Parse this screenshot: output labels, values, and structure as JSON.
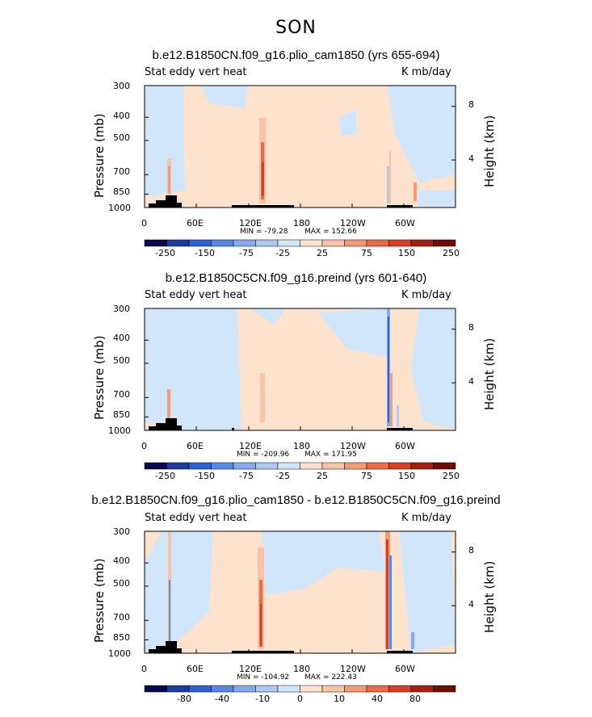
{
  "figure_title": "SON",
  "chart_data": [
    {
      "type": "heatmap",
      "title": "b.e12.B1850CN.f09_g16.plio_cam1850 (yrs 655-694)",
      "left_label": "Stat eddy vert heat",
      "right_label": "K mb/day",
      "ylabel": "Pressure (mb)",
      "y2label": "Height (km)",
      "x_ticks": [
        "0",
        "60E",
        "120E",
        "180",
        "120W",
        "60W"
      ],
      "y_ticks": [
        "300",
        "400",
        "500",
        "700",
        "850",
        "1000"
      ],
      "y2_ticks": [
        "8",
        "4"
      ],
      "min_label": "MIN = -79.28",
      "max_label": "MAX = 152.66",
      "colorbar_labels": [
        "-250",
        "-150",
        "-75",
        "-25",
        "25",
        "75",
        "150",
        "250"
      ]
    },
    {
      "type": "heatmap",
      "title": "b.e12.B1850C5CN.f09_g16.preind (yrs 601-640)",
      "left_label": "Stat eddy vert heat",
      "right_label": "K mb/day",
      "ylabel": "Pressure (mb)",
      "y2label": "Height (km)",
      "x_ticks": [
        "0",
        "60E",
        "120E",
        "180",
        "120W",
        "60W"
      ],
      "y_ticks": [
        "300",
        "400",
        "500",
        "700",
        "850",
        "1000"
      ],
      "y2_ticks": [
        "8",
        "4"
      ],
      "min_label": "MIN = -209.96",
      "max_label": "MAX = 171.95",
      "colorbar_labels": [
        "-250",
        "-150",
        "-75",
        "-25",
        "25",
        "75",
        "150",
        "250"
      ]
    },
    {
      "type": "heatmap",
      "title": "b.e12.B1850CN.f09_g16.plio_cam1850 - b.e12.B1850C5CN.f09_g16.preind",
      "left_label": "Stat eddy vert heat",
      "right_label": "K mb/day",
      "ylabel": "Pressure (mb)",
      "y2label": "Height (km)",
      "x_ticks": [
        "0",
        "60E",
        "120E",
        "180",
        "120W",
        "60W"
      ],
      "y_ticks": [
        "300",
        "400",
        "500",
        "700",
        "850",
        "1000"
      ],
      "y2_ticks": [
        "8",
        "4"
      ],
      "min_label": "MIN = -104.92",
      "max_label": "MAX = 222.43",
      "colorbar_labels": [
        "-80",
        "-40",
        "-10",
        "0",
        "10",
        "40",
        "80"
      ]
    }
  ],
  "colors": {
    "palette": [
      "#08084f",
      "#1d3b9a",
      "#2f61d4",
      "#5888e6",
      "#86aaf0",
      "#adc8f5",
      "#d2e6fb",
      "#fde2cd",
      "#f8c3a6",
      "#f39b77",
      "#eb6b46",
      "#d73f22",
      "#a81e10",
      "#6e0d04"
    ],
    "background": "#ffffff"
  }
}
